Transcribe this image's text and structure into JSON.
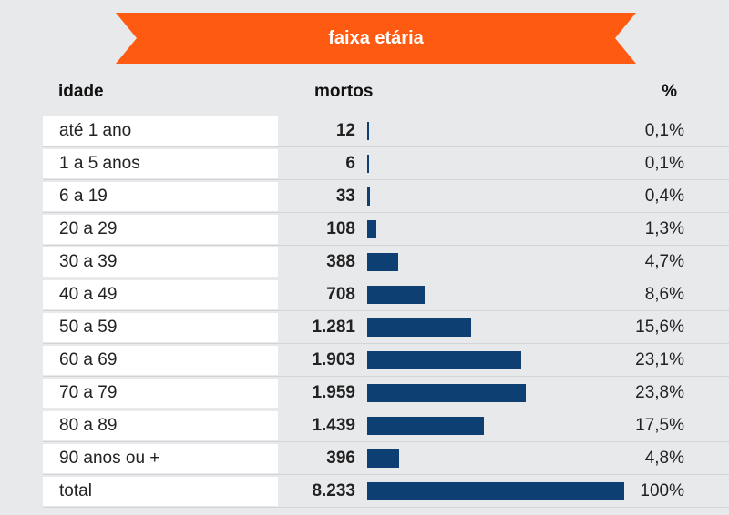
{
  "banner": {
    "title": "faixa etária",
    "color": "#ff5a12"
  },
  "headers": {
    "idade": "idade",
    "mortos": "mortos",
    "pct": "%"
  },
  "bar_color": "#0e3f73",
  "chart_data": {
    "type": "bar",
    "title": "faixa etária",
    "orientation": "horizontal",
    "columns": [
      "idade",
      "mortos",
      "%"
    ],
    "categories": [
      "até 1 ano",
      "1 a 5 anos",
      "6 a 19",
      "20 a 29",
      "30 a 39",
      "40 a 49",
      "50 a 59",
      "60 a 69",
      "70 a 79",
      "80 a 89",
      "90 anos ou +",
      "total"
    ],
    "values": [
      12,
      6,
      33,
      108,
      388,
      708,
      1281,
      1903,
      1959,
      1439,
      396,
      8233
    ],
    "value_labels": [
      "12",
      "6",
      "33",
      "108",
      "388",
      "708",
      "1.281",
      "1.903",
      "1.959",
      "1.439",
      "396",
      "8.233"
    ],
    "percent_labels": [
      "0,1%",
      "0,1%",
      "0,4%",
      "1,3%",
      "4,7%",
      "8,6%",
      "15,6%",
      "23,1%",
      "23,8%",
      "17,5%",
      "4,8%",
      "100%"
    ],
    "percent": [
      0.1,
      0.1,
      0.4,
      1.3,
      4.7,
      8.6,
      15.6,
      23.1,
      23.8,
      17.5,
      4.8,
      100
    ]
  }
}
